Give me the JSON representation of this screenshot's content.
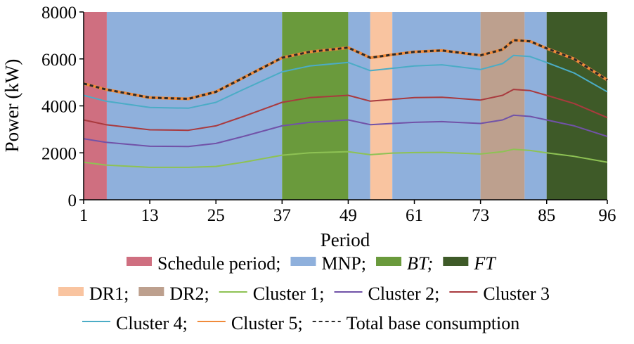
{
  "chart_data": {
    "type": "line",
    "xlabel": "Period",
    "ylabel": "Power (kW)",
    "xlim": [
      1,
      96
    ],
    "ylim": [
      0,
      8000
    ],
    "x_ticks": [
      1,
      13,
      25,
      37,
      49,
      61,
      73,
      85,
      96
    ],
    "y_ticks": [
      0,
      2000,
      4000,
      6000,
      8000
    ],
    "bands": [
      {
        "name": "schedule-period",
        "label": "Schedule period;",
        "from": 1,
        "to": 5.2,
        "color": "#cf6f80"
      },
      {
        "name": "mnp",
        "label": "MNP;",
        "from": 5.2,
        "to": 37,
        "color": "#8fb0dc"
      },
      {
        "name": "bt",
        "label": "BT;",
        "italic": true,
        "from": 37,
        "to": 49,
        "color": "#6a9a3c"
      },
      {
        "name": "mnp-2",
        "label": "",
        "from": 49,
        "to": 53,
        "color": "#8fb0dc"
      },
      {
        "name": "dr1",
        "label": "DR1;",
        "from": 53,
        "to": 57,
        "color": "#f9c4a0"
      },
      {
        "name": "mnp-3",
        "label": "",
        "from": 57,
        "to": 73,
        "color": "#8fb0dc"
      },
      {
        "name": "dr2",
        "label": "DR2;",
        "from": 73,
        "to": 81,
        "color": "#bda08e"
      },
      {
        "name": "mnp-4",
        "label": "",
        "from": 81,
        "to": 85,
        "color": "#8fb0dc"
      },
      {
        "name": "ft",
        "label": "FT",
        "italic": true,
        "from": 85,
        "to": 96,
        "color": "#3e5a28"
      }
    ],
    "series": [
      {
        "name": "Cluster 1;",
        "color": "#8ec254",
        "dash": false,
        "width": 2,
        "points": [
          [
            1,
            1600
          ],
          [
            5,
            1480
          ],
          [
            13,
            1380
          ],
          [
            20,
            1380
          ],
          [
            25,
            1420
          ],
          [
            30,
            1600
          ],
          [
            37,
            1900
          ],
          [
            42,
            2000
          ],
          [
            49,
            2050
          ],
          [
            53,
            1920
          ],
          [
            57,
            1990
          ],
          [
            61,
            2010
          ],
          [
            66,
            2020
          ],
          [
            73,
            1950
          ],
          [
            77,
            2050
          ],
          [
            79,
            2150
          ],
          [
            82,
            2100
          ],
          [
            85,
            2000
          ],
          [
            90,
            1850
          ],
          [
            96,
            1600
          ]
        ]
      },
      {
        "name": "Cluster 2;",
        "color": "#7152a8",
        "dash": false,
        "width": 2,
        "points": [
          [
            1,
            2600
          ],
          [
            5,
            2450
          ],
          [
            13,
            2280
          ],
          [
            20,
            2270
          ],
          [
            25,
            2400
          ],
          [
            30,
            2700
          ],
          [
            37,
            3150
          ],
          [
            42,
            3300
          ],
          [
            49,
            3400
          ],
          [
            53,
            3200
          ],
          [
            57,
            3250
          ],
          [
            61,
            3300
          ],
          [
            66,
            3330
          ],
          [
            73,
            3250
          ],
          [
            77,
            3400
          ],
          [
            79,
            3600
          ],
          [
            82,
            3550
          ],
          [
            85,
            3400
          ],
          [
            90,
            3150
          ],
          [
            96,
            2700
          ]
        ]
      },
      {
        "name": "Cluster 3",
        "color": "#a93a3e",
        "dash": false,
        "width": 2,
        "points": [
          [
            1,
            3400
          ],
          [
            5,
            3200
          ],
          [
            13,
            2980
          ],
          [
            20,
            2960
          ],
          [
            25,
            3150
          ],
          [
            30,
            3550
          ],
          [
            37,
            4150
          ],
          [
            42,
            4350
          ],
          [
            49,
            4450
          ],
          [
            53,
            4200
          ],
          [
            57,
            4280
          ],
          [
            61,
            4350
          ],
          [
            66,
            4370
          ],
          [
            73,
            4250
          ],
          [
            77,
            4450
          ],
          [
            79,
            4700
          ],
          [
            82,
            4650
          ],
          [
            85,
            4450
          ],
          [
            90,
            4100
          ],
          [
            96,
            3500
          ]
        ]
      },
      {
        "name": "Cluster 4;",
        "color": "#4bacc6",
        "dash": false,
        "width": 2,
        "points": [
          [
            1,
            4450
          ],
          [
            5,
            4200
          ],
          [
            13,
            3930
          ],
          [
            20,
            3900
          ],
          [
            25,
            4150
          ],
          [
            30,
            4700
          ],
          [
            37,
            5450
          ],
          [
            42,
            5700
          ],
          [
            49,
            5850
          ],
          [
            53,
            5500
          ],
          [
            57,
            5600
          ],
          [
            61,
            5700
          ],
          [
            66,
            5750
          ],
          [
            73,
            5550
          ],
          [
            77,
            5800
          ],
          [
            79,
            6150
          ],
          [
            82,
            6100
          ],
          [
            85,
            5850
          ],
          [
            90,
            5400
          ],
          [
            96,
            4600
          ]
        ]
      },
      {
        "name": "Cluster 5;",
        "color": "#f08a3a",
        "dash": false,
        "width": 4,
        "points": [
          [
            1,
            4950
          ],
          [
            5,
            4700
          ],
          [
            13,
            4350
          ],
          [
            20,
            4300
          ],
          [
            25,
            4600
          ],
          [
            30,
            5200
          ],
          [
            37,
            6050
          ],
          [
            42,
            6300
          ],
          [
            49,
            6480
          ],
          [
            53,
            6050
          ],
          [
            57,
            6180
          ],
          [
            61,
            6300
          ],
          [
            66,
            6360
          ],
          [
            73,
            6150
          ],
          [
            77,
            6400
          ],
          [
            79,
            6800
          ],
          [
            82,
            6750
          ],
          [
            85,
            6450
          ],
          [
            90,
            6000
          ],
          [
            96,
            5100
          ]
        ]
      },
      {
        "name": "Total base consumption",
        "color": "#2a2a2a",
        "dash": true,
        "width": 3,
        "points": [
          [
            1,
            4950
          ],
          [
            5,
            4700
          ],
          [
            13,
            4350
          ],
          [
            20,
            4300
          ],
          [
            25,
            4600
          ],
          [
            30,
            5200
          ],
          [
            37,
            6050
          ],
          [
            42,
            6300
          ],
          [
            49,
            6480
          ],
          [
            53,
            6050
          ],
          [
            57,
            6180
          ],
          [
            61,
            6300
          ],
          [
            66,
            6360
          ],
          [
            73,
            6150
          ],
          [
            77,
            6400
          ],
          [
            79,
            6800
          ],
          [
            82,
            6750
          ],
          [
            85,
            6450
          ],
          [
            90,
            6000
          ],
          [
            96,
            5100
          ]
        ]
      }
    ],
    "legend_placement": "bottom",
    "grid": false
  }
}
